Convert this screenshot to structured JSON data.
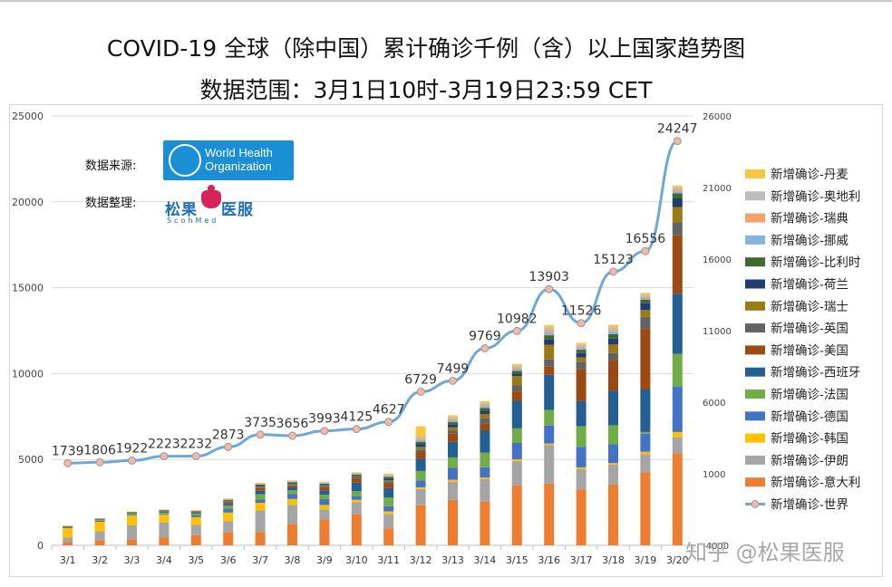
{
  "header": {
    "title": "COVID-19 全球（除中国）累计确诊千例（含）以上国家趋势图",
    "subtitle": "数据范围：3月1日10时-3月19日23:59 CET"
  },
  "sources": {
    "data_source_label": "数据来源:",
    "organizer_label": "数据整理:",
    "who_logo_text_1": "World Health",
    "who_logo_text_2": "Organization",
    "scoh_logo_name": "松果",
    "scoh_logo_name_2": "医服",
    "scoh_logo_sub": "ScohMed"
  },
  "watermark": "知乎 @松果医服",
  "colors": {
    "丹麦": "#f5c842",
    "奥地利": "#bdbdbd",
    "瑞典": "#f4a26b",
    "挪威": "#86b4dc",
    "比利时": "#3e6b2d",
    "荷兰": "#1f3c73",
    "瑞士": "#9a7a14",
    "英国": "#636363",
    "美国": "#9c4a14",
    "西班牙": "#255e91",
    "法国": "#70ad47",
    "德国": "#4472c4",
    "韩国": "#ffc000",
    "伊朗": "#a5a5a5",
    "意大利": "#ed7d31",
    "世界": "#6fa8d6"
  },
  "chart_data": {
    "type": "bar",
    "stacked": true,
    "categories": [
      "3/1",
      "3/2",
      "3/3",
      "3/4",
      "3/5",
      "3/6",
      "3/7",
      "3/8",
      "3/9",
      "3/10",
      "3/11",
      "3/12",
      "3/13",
      "3/14",
      "3/15",
      "3/16",
      "3/17",
      "3/18",
      "3/19",
      "3/20"
    ],
    "ylim_left": [
      0,
      25000
    ],
    "yticks_left": [
      0,
      5000,
      10000,
      15000,
      20000,
      25000
    ],
    "ylim_right": [
      -4000,
      26000
    ],
    "yticks_right": [
      "-4000",
      "1000",
      "6000",
      "11000",
      "16000",
      "21000",
      "26000"
    ],
    "grid": true,
    "legend_position": "right",
    "series": [
      {
        "name": "新增确诊-意大利",
        "key": "意大利",
        "values": [
          200,
          300,
          350,
          470,
          590,
          780,
          780,
          1250,
          1500,
          1800,
          980,
          2330,
          2650,
          2550,
          3500,
          3600,
          3250,
          3550,
          4250,
          5350
        ]
      },
      {
        "name": "新增确诊-伊朗",
        "key": "伊朗",
        "values": [
          250,
          520,
          830,
          860,
          600,
          630,
          1250,
          1100,
          600,
          700,
          850,
          950,
          1050,
          1300,
          1400,
          2250,
          1200,
          1150,
          1050,
          950
        ]
      },
      {
        "name": "新增确诊-韩国",
        "key": "韩国",
        "values": [
          550,
          550,
          550,
          450,
          450,
          500,
          450,
          350,
          250,
          150,
          150,
          100,
          120,
          100,
          110,
          80,
          90,
          90,
          150,
          300
        ]
      },
      {
        "name": "新增确诊-德国",
        "key": "德国",
        "values": [
          50,
          60,
          50,
          50,
          100,
          200,
          200,
          300,
          350,
          200,
          300,
          400,
          700,
          600,
          950,
          1050,
          1200,
          1100,
          1050,
          2650
        ]
      },
      {
        "name": "新增确诊-法国",
        "key": "法国",
        "values": [
          30,
          60,
          70,
          80,
          100,
          200,
          300,
          200,
          250,
          300,
          500,
          550,
          600,
          850,
          850,
          900,
          1200,
          1100,
          100,
          1900
        ]
      },
      {
        "name": "新增确诊-西班牙",
        "key": "西班牙",
        "values": [
          20,
          30,
          40,
          50,
          50,
          100,
          200,
          150,
          250,
          500,
          550,
          700,
          900,
          1300,
          1600,
          2050,
          1450,
          2000,
          2500,
          3500
        ]
      },
      {
        "name": "新增确诊-美国",
        "key": "美国",
        "values": [
          0,
          10,
          20,
          30,
          40,
          100,
          150,
          120,
          170,
          250,
          300,
          400,
          500,
          400,
          550,
          500,
          1850,
          1800,
          3500,
          3400
        ]
      },
      {
        "name": "新增确诊-英国",
        "key": "英国",
        "values": [
          10,
          10,
          10,
          20,
          30,
          50,
          50,
          50,
          70,
          80,
          100,
          150,
          150,
          300,
          350,
          400,
          450,
          400,
          700,
          750
        ]
      },
      {
        "name": "新增确诊-瑞士",
        "key": "瑞士",
        "values": [
          5,
          10,
          10,
          15,
          15,
          30,
          50,
          50,
          50,
          50,
          50,
          150,
          200,
          250,
          550,
          850,
          250,
          500,
          400,
          900
        ]
      },
      {
        "name": "新增确诊-荷兰",
        "key": "荷兰",
        "values": [
          5,
          10,
          10,
          15,
          15,
          30,
          50,
          50,
          50,
          50,
          100,
          150,
          150,
          200,
          150,
          300,
          250,
          350,
          400,
          500
        ]
      },
      {
        "name": "新增确诊-比利时",
        "key": "比利时",
        "values": [
          5,
          5,
          5,
          10,
          10,
          30,
          50,
          50,
          50,
          50,
          100,
          150,
          150,
          150,
          150,
          250,
          200,
          250,
          200,
          300
        ]
      },
      {
        "name": "新增确诊-挪威",
        "key": "挪威",
        "values": [
          5,
          5,
          5,
          10,
          10,
          20,
          30,
          30,
          30,
          30,
          50,
          100,
          100,
          100,
          100,
          150,
          100,
          150,
          100,
          100
        ]
      },
      {
        "name": "新增确诊-瑞典",
        "key": "瑞典",
        "values": [
          5,
          5,
          5,
          10,
          10,
          20,
          30,
          30,
          30,
          30,
          50,
          100,
          100,
          100,
          100,
          150,
          100,
          100,
          100,
          150
        ]
      },
      {
        "name": "新增确诊-奥地利",
        "key": "奥地利",
        "values": [
          5,
          5,
          5,
          10,
          10,
          20,
          30,
          30,
          30,
          30,
          50,
          100,
          100,
          100,
          100,
          150,
          100,
          150,
          100,
          100
        ]
      },
      {
        "name": "新增确诊-丹麦",
        "key": "丹麦",
        "values": [
          5,
          5,
          5,
          10,
          10,
          20,
          30,
          30,
          30,
          30,
          50,
          600,
          100,
          100,
          100,
          150,
          100,
          150,
          100,
          100
        ]
      }
    ],
    "line_series": {
      "name": "新增确诊-世界",
      "axis": "right",
      "values": [
        1739,
        1806,
        1922,
        2223,
        2232,
        2873,
        3735,
        3656,
        3993,
        4125,
        4627,
        6729,
        7499,
        9769,
        10982,
        13903,
        11526,
        15123,
        16556,
        24247
      ],
      "labels": [
        "1739",
        "1806",
        "1922",
        "2223",
        "2232",
        "2873",
        "3735",
        "3656",
        "3993",
        "4125",
        "4627",
        "6729",
        "7499",
        "9769",
        "10982",
        "13903",
        "11526",
        "15123",
        "16556",
        "24247"
      ]
    },
    "legend_order": [
      "丹麦",
      "奥地利",
      "瑞典",
      "挪威",
      "比利时",
      "荷兰",
      "瑞士",
      "英国",
      "美国",
      "西班牙",
      "法国",
      "德国",
      "韩国",
      "伊朗",
      "意大利"
    ]
  }
}
